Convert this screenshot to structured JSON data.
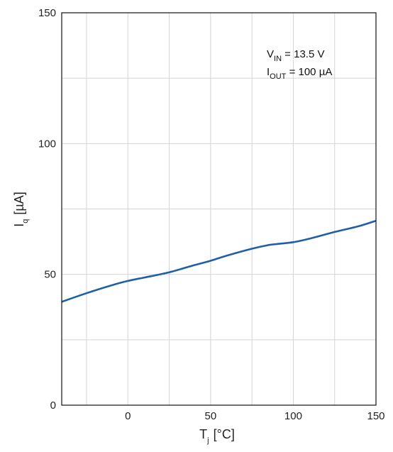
{
  "chart_data": {
    "type": "line",
    "title": "",
    "xlabel": {
      "main": "T",
      "sub": "j",
      "unit": "[°C]"
    },
    "ylabel": {
      "main": "I",
      "sub": "q",
      "unit": "[µA]"
    },
    "xlim": [
      -40,
      150
    ],
    "ylim": [
      0,
      150
    ],
    "x_ticks": [
      0,
      50,
      100,
      150
    ],
    "y_ticks": [
      0,
      50,
      100,
      150
    ],
    "x_gridlines": [
      -25,
      0,
      25,
      50,
      75,
      100,
      125,
      150
    ],
    "y_gridlines": [
      25,
      50,
      75,
      100,
      125,
      150
    ],
    "grid": true,
    "line_color": "#1f5fa6",
    "annotation": {
      "line1": {
        "main": "V",
        "sub": "IN",
        "rest": " = 13.5 V"
      },
      "line2": {
        "main": "I",
        "sub": "OUT",
        "rest": " = 100 µA"
      },
      "position": "top-right"
    },
    "series": [
      {
        "x": [
          -40,
          -25,
          -10,
          0,
          10,
          25,
          40,
          50,
          60,
          75,
          85,
          90,
          100,
          110,
          125,
          140,
          150
        ],
        "y": [
          39.5,
          42.8,
          45.8,
          47.5,
          48.8,
          50.8,
          53.5,
          55.2,
          57.2,
          59.8,
          61.2,
          61.6,
          62.3,
          63.7,
          66.2,
          68.5,
          70.5
        ]
      }
    ]
  }
}
